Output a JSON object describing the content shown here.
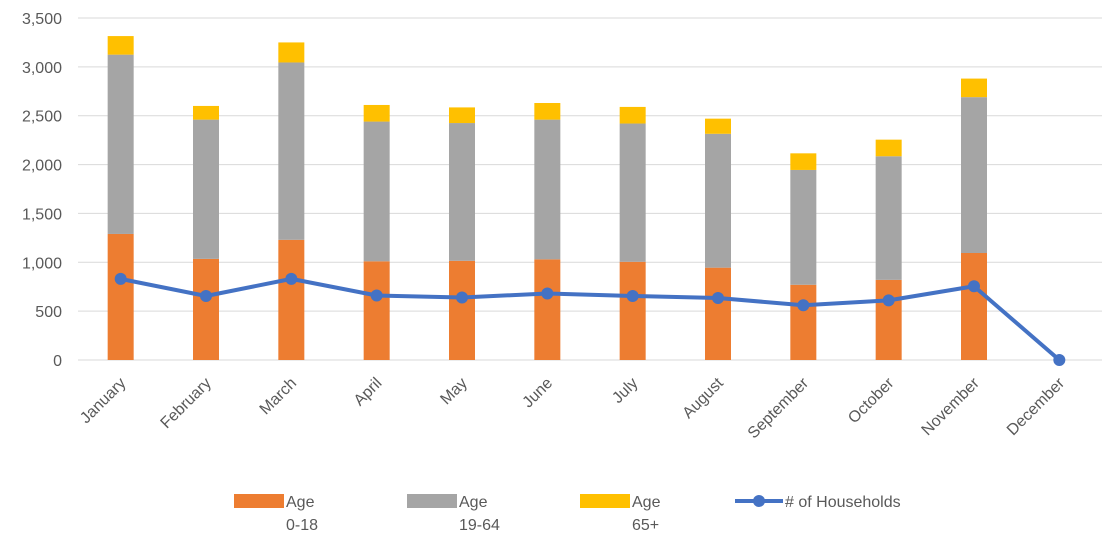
{
  "chart_data": {
    "type": "bar",
    "stacked": true,
    "categories": [
      "January",
      "February",
      "March",
      "April",
      "May",
      "June",
      "July",
      "August",
      "September",
      "October",
      "November",
      "December"
    ],
    "series": [
      {
        "name": "Age 0-18",
        "type": "bar",
        "color": "#ED7D31",
        "values": [
          1290,
          1035,
          1230,
          1010,
          1015,
          1030,
          1005,
          945,
          770,
          820,
          1095,
          0
        ]
      },
      {
        "name": "Age 19-64",
        "type": "bar",
        "color": "#A5A5A5",
        "values": [
          1835,
          1425,
          1815,
          1430,
          1410,
          1430,
          1415,
          1370,
          1175,
          1265,
          1595,
          0
        ]
      },
      {
        "name": "Age 65+",
        "type": "bar",
        "color": "#FFC000",
        "values": [
          190,
          140,
          205,
          170,
          160,
          170,
          170,
          155,
          170,
          170,
          190,
          0
        ]
      },
      {
        "name": "# of Households",
        "type": "line",
        "color": "#4472C4",
        "values": [
          830,
          655,
          830,
          660,
          640,
          680,
          655,
          635,
          560,
          610,
          755,
          0
        ]
      }
    ],
    "y_ticks": [
      "0",
      "500",
      "1,000",
      "1,500",
      "2,000",
      "2,500",
      "3,000",
      "3,500"
    ],
    "ylim": [
      0,
      3500
    ],
    "grid": true,
    "legend": {
      "position": "bottom",
      "items": [
        {
          "line1": "Age",
          "line2": "0-18",
          "color": "#ED7D31",
          "kind": "bar"
        },
        {
          "line1": "Age",
          "line2": "19-64",
          "color": "#A5A5A5",
          "kind": "bar"
        },
        {
          "line1": "Age",
          "line2": "65+",
          "color": "#FFC000",
          "kind": "bar"
        },
        {
          "line1": "# of Households",
          "line2": "",
          "color": "#4472C4",
          "kind": "line"
        }
      ]
    },
    "title": "",
    "xlabel": "",
    "ylabel": ""
  }
}
